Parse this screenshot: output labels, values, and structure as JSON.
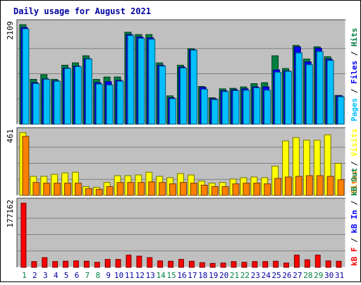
{
  "title": "Daily usage for August 2021",
  "colors": {
    "background": "#c0c0c0",
    "title": "#0000a0",
    "pages": "#00c0ff",
    "files": "#0000ff",
    "hits": "#008040",
    "visits": "#ffff00",
    "sites": "#ff8000",
    "kb_f": "#ff0000",
    "kb_in": "#0000ff",
    "kb_out": "#008040",
    "weekday_label": "#0000a0",
    "weekend_label": "#008040"
  },
  "legend": {
    "top": [
      "Pages",
      "Files",
      "Hits"
    ],
    "middle": [
      "Sites",
      "Visits"
    ],
    "bottom": [
      "kB F",
      "kB In",
      "kB Out"
    ]
  },
  "chart_data": [
    {
      "type": "bar",
      "panel": "top",
      "ylabel_max": "2109",
      "ylim": [
        0,
        2109
      ],
      "categories": [
        "1",
        "2",
        "3",
        "4",
        "5",
        "6",
        "7",
        "8",
        "9",
        "10",
        "11",
        "12",
        "13",
        "14",
        "15",
        "16",
        "17",
        "18",
        "19",
        "20",
        "21",
        "22",
        "23",
        "24",
        "25",
        "26",
        "27",
        "28",
        "29",
        "30",
        "31"
      ],
      "weekend_days": [
        "1",
        "7",
        "8",
        "14",
        "15",
        "21",
        "22",
        "28",
        "29"
      ],
      "series": [
        {
          "name": "Hits",
          "values": [
            2109,
            950,
            1050,
            950,
            1250,
            1300,
            1450,
            950,
            1000,
            1000,
            1950,
            1900,
            1900,
            1300,
            600,
            1250,
            1600,
            800,
            560,
            750,
            760,
            790,
            860,
            880,
            1450,
            1180,
            1670,
            1380,
            1640,
            1430,
            610
          ]
        },
        {
          "name": "Files",
          "values": [
            2050,
            880,
            960,
            920,
            1190,
            1230,
            1390,
            880,
            900,
            930,
            1900,
            1850,
            1830,
            1250,
            560,
            1210,
            1580,
            780,
            540,
            710,
            730,
            750,
            790,
            790,
            1150,
            1130,
            1640,
            1320,
            1610,
            1380,
            600
          ]
        },
        {
          "name": "Pages",
          "values": [
            2020,
            860,
            950,
            910,
            1180,
            1220,
            1380,
            850,
            830,
            910,
            1880,
            1820,
            1800,
            1230,
            540,
            1190,
            1570,
            740,
            520,
            690,
            710,
            720,
            770,
            720,
            1100,
            1120,
            1510,
            1260,
            1540,
            1350,
            580
          ]
        }
      ]
    },
    {
      "type": "bar",
      "panel": "middle",
      "ylabel_max": "461",
      "ylim": [
        0,
        461
      ],
      "series": [
        {
          "name": "Visits",
          "values": [
            461,
            140,
            140,
            155,
            165,
            170,
            65,
            60,
            95,
            145,
            145,
            150,
            170,
            140,
            130,
            160,
            150,
            105,
            90,
            95,
            120,
            130,
            135,
            130,
            215,
            400,
            425,
            405,
            405,
            445,
            235
          ]
        },
        {
          "name": "Sites",
          "values": [
            434,
            95,
            90,
            90,
            90,
            90,
            50,
            45,
            65,
            95,
            95,
            95,
            100,
            95,
            85,
            95,
            90,
            75,
            65,
            65,
            85,
            90,
            90,
            85,
            125,
            135,
            140,
            145,
            145,
            140,
            115
          ]
        }
      ]
    },
    {
      "type": "bar",
      "panel": "bottom",
      "ylabel_max": "177162",
      "ylim": [
        0,
        177162
      ],
      "series": [
        {
          "name": "kB F",
          "values": [
            177162,
            16000,
            27000,
            16000,
            17000,
            18000,
            17000,
            14000,
            22000,
            22000,
            34000,
            31000,
            27000,
            18000,
            17000,
            22000,
            17000,
            13000,
            11000,
            12000,
            16000,
            14000,
            16000,
            16000,
            17000,
            12000,
            34000,
            21000,
            34000,
            18000,
            17000
          ]
        },
        {
          "name": "kB In",
          "values": [
            0,
            0,
            0,
            0,
            0,
            0,
            0,
            0,
            0,
            0,
            0,
            0,
            0,
            0,
            0,
            0,
            0,
            0,
            0,
            0,
            0,
            0,
            0,
            0,
            0,
            0,
            0,
            0,
            0,
            0,
            0
          ]
        },
        {
          "name": "kB Out",
          "values": [
            0,
            0,
            0,
            0,
            0,
            0,
            0,
            0,
            0,
            0,
            0,
            0,
            0,
            0,
            0,
            0,
            0,
            0,
            0,
            0,
            0,
            0,
            0,
            0,
            0,
            0,
            0,
            0,
            0,
            0,
            0
          ]
        }
      ]
    }
  ]
}
